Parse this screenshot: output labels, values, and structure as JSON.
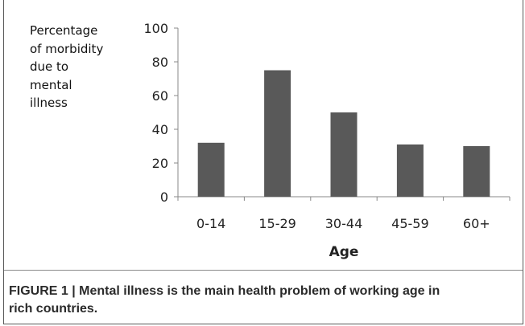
{
  "chart_data": {
    "type": "bar",
    "ylabel_lines": [
      "Percentage",
      "of morbidity",
      "due to",
      "mental",
      "illness"
    ],
    "xlabel": "Age",
    "categories": [
      "0-14",
      "15-29",
      "30-44",
      "45-59",
      "60+"
    ],
    "values": [
      32,
      75,
      50,
      31,
      30
    ],
    "ylim": [
      0,
      100
    ],
    "yticks": [
      0,
      20,
      40,
      60,
      80,
      100
    ],
    "grid": false,
    "legend": "none",
    "bar_color": "#595959"
  },
  "caption": {
    "line1": "FIGURE 1 | Mental illness is the main health problem of working age in",
    "line2": "rich countries."
  }
}
